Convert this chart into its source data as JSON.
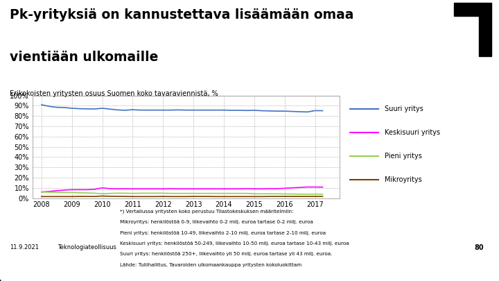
{
  "title_line1": "Pk-yrityksiä on kannustettava lisäämään omaa",
  "title_line2": "vientiään ulkomaille",
  "subtitle": "Erikokoisten yritysten osuus Suomen koko tavaraviennistä, %",
  "years": [
    2008,
    2008.25,
    2008.5,
    2008.75,
    2009,
    2009.25,
    2009.5,
    2009.75,
    2010,
    2010.25,
    2010.5,
    2010.75,
    2011,
    2011.25,
    2011.5,
    2011.75,
    2012,
    2012.25,
    2012.5,
    2012.75,
    2013,
    2013.25,
    2013.5,
    2013.75,
    2014,
    2014.25,
    2014.5,
    2014.75,
    2015,
    2015.25,
    2015.5,
    2015.75,
    2016,
    2016.25,
    2016.5,
    2016.75,
    2017,
    2017.25
  ],
  "suuri": [
    0.91,
    0.895,
    0.885,
    0.883,
    0.876,
    0.872,
    0.87,
    0.869,
    0.876,
    0.868,
    0.86,
    0.856,
    0.862,
    0.858,
    0.858,
    0.858,
    0.858,
    0.858,
    0.86,
    0.858,
    0.858,
    0.858,
    0.858,
    0.858,
    0.858,
    0.856,
    0.856,
    0.854,
    0.856,
    0.852,
    0.85,
    0.848,
    0.848,
    0.845,
    0.842,
    0.84,
    0.853,
    0.852
  ],
  "keskisuuri": [
    0.06,
    0.065,
    0.072,
    0.078,
    0.082,
    0.082,
    0.082,
    0.086,
    0.1,
    0.092,
    0.09,
    0.091,
    0.09,
    0.09,
    0.09,
    0.09,
    0.09,
    0.092,
    0.09,
    0.09,
    0.09,
    0.09,
    0.09,
    0.09,
    0.09,
    0.09,
    0.09,
    0.092,
    0.09,
    0.09,
    0.092,
    0.092,
    0.096,
    0.1,
    0.104,
    0.108,
    0.108,
    0.107
  ],
  "pieni": [
    0.06,
    0.058,
    0.056,
    0.054,
    0.054,
    0.052,
    0.05,
    0.048,
    0.042,
    0.046,
    0.048,
    0.048,
    0.046,
    0.048,
    0.048,
    0.048,
    0.048,
    0.046,
    0.046,
    0.046,
    0.046,
    0.046,
    0.046,
    0.046,
    0.046,
    0.046,
    0.046,
    0.046,
    0.042,
    0.042,
    0.042,
    0.042,
    0.04,
    0.04,
    0.038,
    0.038,
    0.038,
    0.038
  ],
  "mikro": [
    0.015,
    0.015,
    0.015,
    0.015,
    0.015,
    0.016,
    0.016,
    0.016,
    0.02,
    0.018,
    0.017,
    0.016,
    0.015,
    0.015,
    0.015,
    0.015,
    0.016,
    0.015,
    0.015,
    0.015,
    0.016,
    0.016,
    0.016,
    0.015,
    0.015,
    0.015,
    0.015,
    0.015,
    0.015,
    0.015,
    0.016,
    0.016,
    0.016,
    0.016,
    0.016,
    0.016,
    0.016,
    0.016
  ],
  "suuri_color": "#4472C4",
  "keskisuuri_color": "#FF00FF",
  "pieni_color": "#92D050",
  "mikro_color": "#7B3F00",
  "legend_labels": [
    "Suuri yritys",
    "Keskisuuri yritys",
    "Pieni yritys",
    "Mikroyritys"
  ],
  "footer_date": "11.9.2021",
  "footer_org": "Teknologiateollisuus",
  "page_number": "80",
  "xlim": [
    2007.7,
    2017.8
  ],
  "ylim": [
    0,
    1.0
  ],
  "yticks": [
    0.0,
    0.1,
    0.2,
    0.3,
    0.4,
    0.5,
    0.6,
    0.7,
    0.8,
    0.9,
    1.0
  ],
  "xticks": [
    2008,
    2009,
    2010,
    2011,
    2012,
    2013,
    2014,
    2015,
    2016,
    2017
  ],
  "footer_lines": [
    "*) Vertailussa yritysten koko perustuu Tilastokeskuksen määritelmiin:",
    "Mikroyritys: henkilöstöä 0-9, liikevaihto 0-2 milj. euroa tartase 0-2 milj. euroa",
    "Pieni yritys: henkilöstöä 10-49, liikevaihto 2-10 milj. euroa tartase 2-10 milj. euroa",
    "Keskisuuri yritys: henkilöstöä 50-249, liikevaihto 10-50 milj. euroa tartase 10-43 milj. euroa",
    "Suuri yritys: henkilöstöä 250+, liikevaihto yli 50 milj. euroa tartase yli 43 milj. euroa.",
    "Lähde: Tuliihallitus, Tavaroiden ulkomaankauppa yritysten kokoluokittam"
  ]
}
